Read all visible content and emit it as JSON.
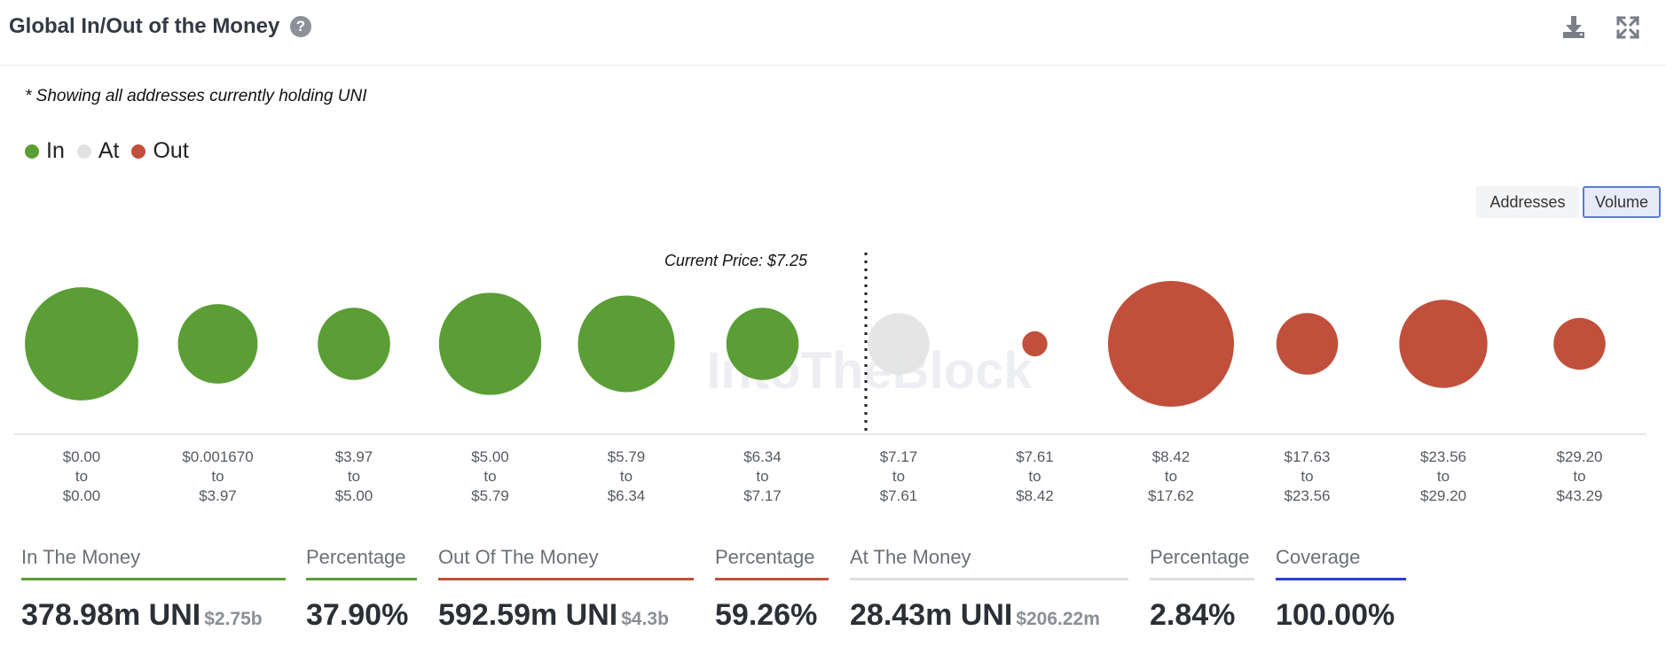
{
  "header": {
    "title": "Global In/Out of the Money",
    "help_icon": "question-circle-icon",
    "download_icon": "download-icon",
    "expand_icon": "expand-icon"
  },
  "note": "* Showing all addresses currently holding UNI",
  "legend": [
    {
      "label": "In",
      "color": "#5a9e35"
    },
    {
      "label": "At",
      "color": "#e2e2e2"
    },
    {
      "label": "Out",
      "color": "#c0503b"
    }
  ],
  "toggles": {
    "addresses": "Addresses",
    "volume": "Volume",
    "active": "volume"
  },
  "watermark": "IntoTheBlock",
  "chart_data": {
    "type": "bubble",
    "current_price_label": "Current Price: $7.25",
    "current_price": 7.25,
    "bins": [
      {
        "from": "$0.00",
        "to": "$0.00",
        "status": "in",
        "size": 0.81
      },
      {
        "from": "$0.001670",
        "to": "$3.97",
        "status": "in",
        "size": 0.4
      },
      {
        "from": "$3.97",
        "to": "$5.00",
        "status": "in",
        "size": 0.33
      },
      {
        "from": "$5.00",
        "to": "$5.79",
        "status": "in",
        "size": 0.66
      },
      {
        "from": "$5.79",
        "to": "$6.34",
        "status": "in",
        "size": 0.59
      },
      {
        "from": "$6.34",
        "to": "$7.17",
        "status": "in",
        "size": 0.33
      },
      {
        "from": "$7.17",
        "to": "$7.61",
        "status": "at",
        "size": 0.24
      },
      {
        "from": "$7.61",
        "to": "$8.42",
        "status": "out",
        "size": 0.04
      },
      {
        "from": "$8.42",
        "to": "$17.62",
        "status": "out",
        "size": 1.0
      },
      {
        "from": "$17.63",
        "to": "$23.56",
        "status": "out",
        "size": 0.24
      },
      {
        "from": "$23.56",
        "to": "$29.20",
        "status": "out",
        "size": 0.49
      },
      {
        "from": "$29.20",
        "to": "$43.29",
        "status": "out",
        "size": 0.17
      }
    ],
    "connector": "to",
    "colors": {
      "in": "#5a9e35",
      "at": "#e2e2e2",
      "out": "#c0503b"
    }
  },
  "stats": [
    {
      "label": "In The Money",
      "value": "378.98m UNI",
      "sub": "$2.75b",
      "color": "#5a9e35"
    },
    {
      "label": "Percentage",
      "value": "37.90%",
      "sub": "",
      "color": "#5a9e35"
    },
    {
      "label": "Out Of The Money",
      "value": "592.59m UNI",
      "sub": "$4.3b",
      "color": "#c0503b"
    },
    {
      "label": "Percentage",
      "value": "59.26%",
      "sub": "",
      "color": "#c0503b"
    },
    {
      "label": "At The Money",
      "value": "28.43m UNI",
      "sub": "$206.22m",
      "color": "#dedfe1"
    },
    {
      "label": "Percentage",
      "value": "2.84%",
      "sub": "",
      "color": "#dedfe1"
    },
    {
      "label": "Coverage",
      "value": "100.00%",
      "sub": "",
      "color": "#2c3fd6"
    }
  ]
}
